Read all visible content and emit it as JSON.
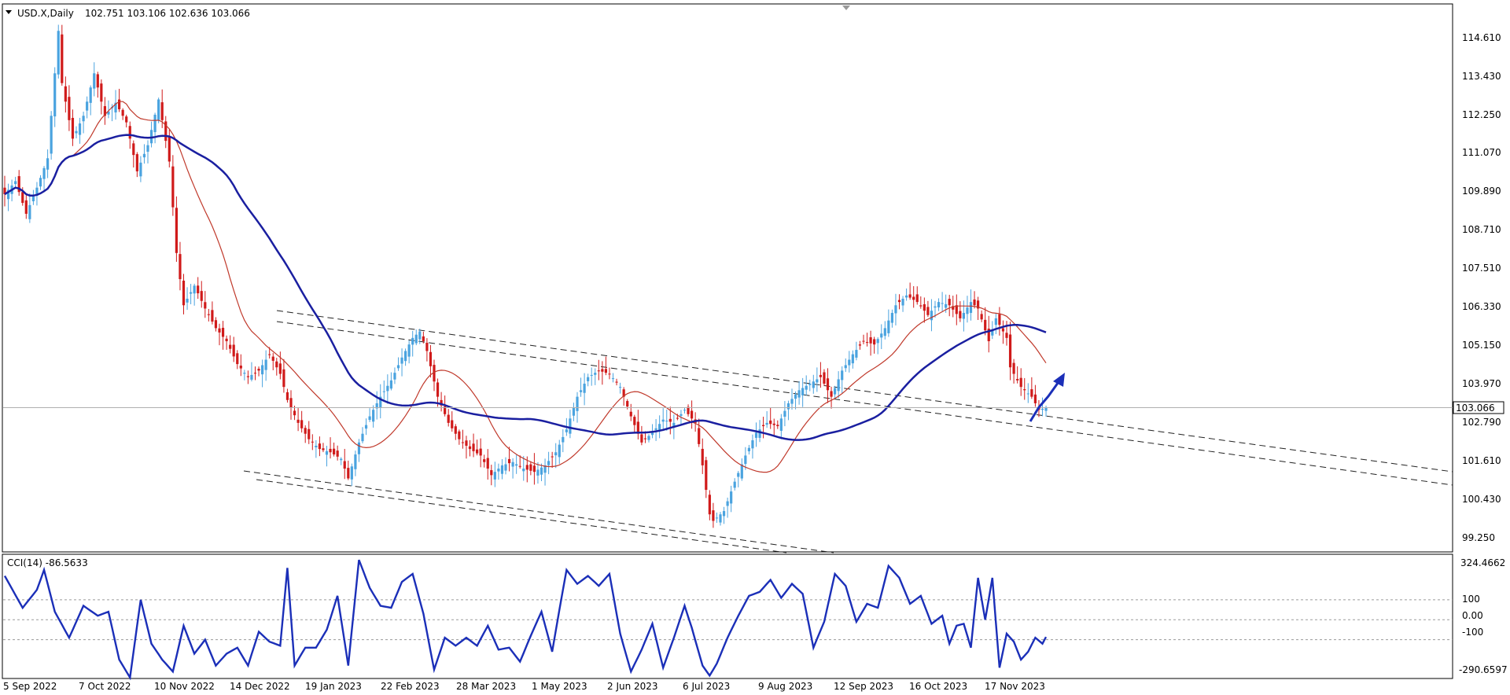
{
  "header": {
    "title": "USD.X,Daily",
    "ohlc": "102.751 103.106 102.636 103.066"
  },
  "price_panel": {
    "y_ticks": [
      "114.610",
      "113.430",
      "112.250",
      "111.070",
      "109.890",
      "108.710",
      "107.510",
      "106.330",
      "105.150",
      "103.970",
      "102.790",
      "101.610",
      "100.430",
      "99.250"
    ],
    "current_price_label": "103.066"
  },
  "indicator": {
    "title": "CCI(14) -86.5633",
    "y_ticks": [
      "324.4662",
      "100",
      "0.00",
      "-100",
      "-290.6597"
    ]
  },
  "x_ticks": [
    "5 Sep 2022",
    "7 Oct 2022",
    "10 Nov 2022",
    "14 Dec 2022",
    "19 Jan 2023",
    "22 Feb 2023",
    "28 Mar 2023",
    "1 May 2023",
    "2 Jun 2023",
    "6 Jul 2023",
    "9 Aug 2023",
    "12 Sep 2023",
    "16 Oct 2023",
    "17 Nov 2023"
  ],
  "colors": {
    "bull": "#4aa3df",
    "bear": "#d01a1a",
    "ma_fast": "#c0392b",
    "ma_slow": "#1a1fa0",
    "cci": "#1b2fb8",
    "arrow": "#1b2fb8"
  },
  "chart_data": [
    {
      "type": "candlestick",
      "series_name": "USD.X,Daily",
      "x_tick_labels": [
        "5 Sep 2022",
        "7 Oct 2022",
        "10 Nov 2022",
        "14 Dec 2022",
        "19 Jan 2023",
        "22 Feb 2023",
        "28 Mar 2023",
        "1 May 2023",
        "2 Jun 2023",
        "6 Jul 2023",
        "9 Aug 2023",
        "12 Sep 2023",
        "16 Oct 2023",
        "17 Nov 2023"
      ],
      "ylim": [
        98.65,
        115.4
      ],
      "last_close": 103.066,
      "close_path": [
        [
          0,
          109.6
        ],
        [
          3,
          110.0
        ],
        [
          6,
          109.0
        ],
        [
          9,
          109.8
        ],
        [
          12,
          110.7
        ],
        [
          14,
          113.3
        ],
        [
          15,
          114.6
        ],
        [
          16,
          113.0
        ],
        [
          19,
          111.3
        ],
        [
          22,
          112.0
        ],
        [
          25,
          113.3
        ],
        [
          28,
          112.0
        ],
        [
          31,
          112.4
        ],
        [
          34,
          111.8
        ],
        [
          37,
          110.3
        ],
        [
          40,
          111.1
        ],
        [
          43,
          112.5
        ],
        [
          46,
          110.6
        ],
        [
          48,
          107.8
        ],
        [
          50,
          106.2
        ],
        [
          53,
          106.8
        ],
        [
          56,
          106.1
        ],
        [
          59,
          105.5
        ],
        [
          62,
          105.1
        ],
        [
          65,
          104.4
        ],
        [
          68,
          104.0
        ],
        [
          71,
          104.2
        ],
        [
          74,
          104.7
        ],
        [
          77,
          104.1
        ],
        [
          79,
          103.3
        ],
        [
          82,
          102.6
        ],
        [
          85,
          102.1
        ],
        [
          88,
          101.8
        ],
        [
          91,
          101.7
        ],
        [
          94,
          101.5
        ],
        [
          96,
          100.9
        ],
        [
          99,
          102.0
        ],
        [
          102,
          102.8
        ],
        [
          105,
          103.4
        ],
        [
          108,
          103.9
        ],
        [
          111,
          104.6
        ],
        [
          114,
          105.2
        ],
        [
          116,
          105.4
        ],
        [
          118,
          104.8
        ],
        [
          121,
          103.4
        ],
        [
          124,
          102.6
        ],
        [
          127,
          102.1
        ],
        [
          130,
          101.8
        ],
        [
          133,
          101.6
        ],
        [
          136,
          101.0
        ],
        [
          139,
          101.3
        ],
        [
          142,
          101.4
        ],
        [
          145,
          101.2
        ],
        [
          148,
          101.1
        ],
        [
          151,
          101.3
        ],
        [
          154,
          101.7
        ],
        [
          157,
          102.4
        ],
        [
          160,
          103.4
        ],
        [
          163,
          104.0
        ],
        [
          166,
          104.2
        ],
        [
          169,
          104.1
        ],
        [
          172,
          103.7
        ],
        [
          175,
          102.8
        ],
        [
          178,
          102.0
        ],
        [
          181,
          102.3
        ],
        [
          184,
          102.7
        ],
        [
          187,
          102.6
        ],
        [
          190,
          103.0
        ],
        [
          193,
          102.6
        ],
        [
          195,
          101.3
        ],
        [
          197,
          99.8
        ],
        [
          198,
          99.6
        ],
        [
          201,
          99.9
        ],
        [
          204,
          100.8
        ],
        [
          207,
          101.6
        ],
        [
          210,
          102.3
        ],
        [
          213,
          102.6
        ],
        [
          216,
          102.5
        ],
        [
          219,
          103.2
        ],
        [
          222,
          103.6
        ],
        [
          225,
          103.8
        ],
        [
          228,
          104.0
        ],
        [
          231,
          103.4
        ],
        [
          234,
          104.2
        ],
        [
          237,
          104.7
        ],
        [
          240,
          105.1
        ],
        [
          243,
          105.0
        ],
        [
          246,
          105.5
        ],
        [
          249,
          106.2
        ],
        [
          252,
          106.5
        ],
        [
          255,
          106.3
        ],
        [
          258,
          105.9
        ],
        [
          261,
          106.3
        ],
        [
          264,
          106.2
        ],
        [
          267,
          105.8
        ],
        [
          270,
          106.3
        ],
        [
          272,
          106.1
        ],
        [
          275,
          105.1
        ],
        [
          277,
          105.8
        ],
        [
          280,
          105.2
        ],
        [
          281,
          104.3
        ],
        [
          284,
          103.7
        ],
        [
          287,
          103.4
        ],
        [
          289,
          103.0
        ],
        [
          291,
          103.066
        ]
      ]
    },
    {
      "type": "line",
      "series_name": "CCI(14)",
      "last_value": -86.5633,
      "ylim": [
        -290.6597,
        324.4662
      ],
      "reference_lines": [
        100,
        0,
        -100
      ],
      "values_path": [
        [
          0,
          220
        ],
        [
          5,
          60
        ],
        [
          9,
          150
        ],
        [
          11,
          250
        ],
        [
          14,
          40
        ],
        [
          18,
          -90
        ],
        [
          22,
          70
        ],
        [
          26,
          20
        ],
        [
          29,
          40
        ],
        [
          32,
          -200
        ],
        [
          35,
          -290
        ],
        [
          38,
          100
        ],
        [
          41,
          -120
        ],
        [
          44,
          -200
        ],
        [
          47,
          -260
        ],
        [
          50,
          -30
        ],
        [
          53,
          -170
        ],
        [
          56,
          -100
        ],
        [
          59,
          -230
        ],
        [
          62,
          -170
        ],
        [
          65,
          -140
        ],
        [
          68,
          -230
        ],
        [
          71,
          -60
        ],
        [
          74,
          -110
        ],
        [
          77,
          -130
        ],
        [
          79,
          260
        ],
        [
          81,
          -230
        ],
        [
          84,
          -140
        ],
        [
          87,
          -140
        ],
        [
          90,
          -50
        ],
        [
          93,
          120
        ],
        [
          96,
          -230
        ],
        [
          99,
          300
        ],
        [
          102,
          160
        ],
        [
          105,
          70
        ],
        [
          108,
          60
        ],
        [
          111,
          190
        ],
        [
          114,
          230
        ],
        [
          117,
          30
        ],
        [
          120,
          -250
        ],
        [
          123,
          -90
        ],
        [
          126,
          -130
        ],
        [
          129,
          -90
        ],
        [
          132,
          -130
        ],
        [
          135,
          -30
        ],
        [
          138,
          -150
        ],
        [
          141,
          -140
        ],
        [
          144,
          -210
        ],
        [
          147,
          -80
        ],
        [
          150,
          40
        ],
        [
          153,
          -160
        ],
        [
          155,
          50
        ],
        [
          157,
          250
        ],
        [
          160,
          180
        ],
        [
          163,
          220
        ],
        [
          166,
          170
        ],
        [
          169,
          230
        ],
        [
          172,
          -70
        ],
        [
          175,
          -260
        ],
        [
          178,
          -150
        ],
        [
          181,
          -20
        ],
        [
          184,
          -240
        ],
        [
          187,
          -90
        ],
        [
          190,
          70
        ],
        [
          192,
          -40
        ],
        [
          195,
          -230
        ],
        [
          197,
          -280
        ],
        [
          199,
          -220
        ],
        [
          202,
          -90
        ],
        [
          205,
          20
        ],
        [
          208,
          120
        ],
        [
          211,
          140
        ],
        [
          214,
          200
        ],
        [
          217,
          110
        ],
        [
          220,
          180
        ],
        [
          223,
          130
        ],
        [
          226,
          -140
        ],
        [
          229,
          -10
        ],
        [
          232,
          230
        ],
        [
          235,
          170
        ],
        [
          238,
          -10
        ],
        [
          241,
          80
        ],
        [
          244,
          60
        ],
        [
          247,
          270
        ],
        [
          250,
          210
        ],
        [
          253,
          80
        ],
        [
          256,
          120
        ],
        [
          259,
          -20
        ],
        [
          262,
          20
        ],
        [
          264,
          -120
        ],
        [
          266,
          -30
        ],
        [
          268,
          -20
        ],
        [
          270,
          -140
        ],
        [
          272,
          210
        ],
        [
          274,
          0
        ],
        [
          276,
          210
        ],
        [
          278,
          -240
        ],
        [
          280,
          -70
        ],
        [
          282,
          -110
        ],
        [
          284,
          -200
        ],
        [
          286,
          -160
        ],
        [
          288,
          -90
        ],
        [
          290,
          -120
        ],
        [
          291,
          -86.5633
        ]
      ]
    }
  ]
}
